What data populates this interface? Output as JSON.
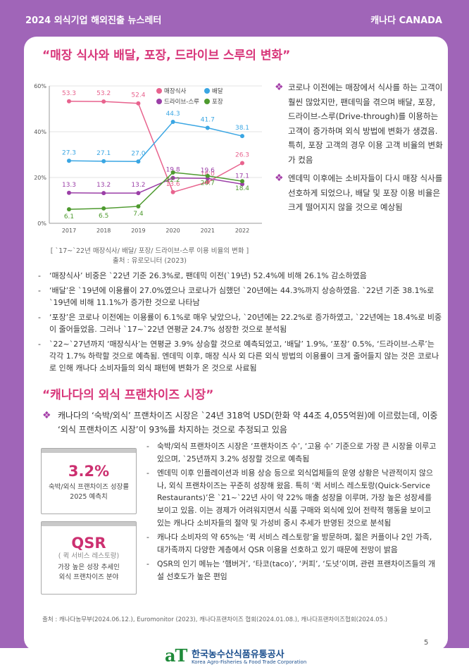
{
  "header": {
    "left": "2024 외식기업 해외진출 뉴스레터",
    "right": "캐나다 CANADA"
  },
  "section1": {
    "heading": "“매장 식사와 배달, 포장, 드라이브 스루의 변화”",
    "bullets": [
      "코로나 이전에는 매장에서 식사를 하는 고객이 훨씬 많았지만, 팬데믹을 겪으며 배달, 포장, 드라이브-스루(Drive-through)를 이용하는 고객이 증가하며 외식 방법에 변화가 생겼음. 특히, 포장 고객의 경우 이용 고객 비율의 변화가 컸음",
      "엔데믹 이후에는 소비자들이 다시 매장 식사를 선호하게 되었으나, 배달 및 포장 이용 비율은 크게 떨어지지 않을 것으로 예상됨"
    ],
    "caption": "[ `17~`22년 매장식사/ 배달/ 포장/ 드라이브-스루 이용 비율의 변화 ]",
    "source": "출처 : 유로모니터 (2023)",
    "dashes": [
      "‘매장식사’ 비중은 `22년 기준 26.3%로, 팬데믹 이전(`19년) 52.4%에 비해 26.1% 감소하였음",
      "‘배달’은 `19년에 이용률이 27.0%였으나 코로나가 심했던 `20년에는 44.3%까지 상승하였음. `22년 기준 38.1%로 `19년에 비해 11.1%가 증가한 것으로 나타남",
      "‘포장’은 코로나 이전에는 이용률이 6.1%로 매우 낮았으나, `20년에는 22.2%로 증가하였고, `22년에는 18.4%로 비중이 줄어들었음. 그러나 `17~`22년 연평균 24.7% 성장한 것으로 분석됨",
      "`22~`27년까지 ‘매장식사’는 연평균 3.9% 상승할 것으로 예측되었고, ‘배달’ 1.9%, ‘포장’ 0.5%, ‘드라이브-스루’는 각각 1.7% 하락할 것으로 예측됨. 엔데믹 이후, 매장 식사 외 다른 외식 방법의 이용률이 크게 줄어들지 않는 것은 코로나로 인해 캐나다 소비자들의 외식 패턴에 변화가 온 것으로 사료됨"
    ]
  },
  "section2": {
    "heading": "“캐나다의 외식 프랜차이즈 시장”",
    "bullet": "캐나다의 ‘숙박/외식’ 프랜차이즈 시장은 `24년 318억 USD(한화 약 44조 4,055억원)에 이르렀는데, 이중 ‘외식 프랜차이즈 시장’이 93%를 차지하는 것으로 추정되고 있음",
    "box1": {
      "big": "3.2%",
      "line1": "숙박/외식 프랜차이즈 성장률",
      "line2": "2025 예측치"
    },
    "box2": {
      "big": "QSR",
      "line0": "( 퀵 서비스 레스토랑)",
      "line1": "가장 높은 성장 추세인",
      "line2": "외식 프랜차이즈 분야"
    },
    "dashes": [
      "숙박/외식 프랜차이즈 시장은 ‘프랜차이즈 수’, ‘고용 수’ 기준으로 가장 큰 시장을 이루고 있으며, `25년까지 3.2% 성장할 것으로 예측됨",
      "엔데믹 이후 인플레이션과 비용 상승 등으로 외식업체들의 운영 상황은 낙관적이지 않으나, 외식 프랜차이즈는 꾸준히 성장해 왔음. 특히 ‘퀵 서비스 레스토랑(Quick-Service Restaurants)’은 `21~`22년 사이 약 22% 매출 성장을 이루며, 가장 높은 성장세를 보이고 있음. 이는 경제가 어려워지면서 식품 구매와 외식에 있어 전략적 행동을 보이고 있는 캐나다 소비자들의 절약 및 가성비 중시 추세가 반영된 것으로 분석됨",
      "캐나다 소비자의 약 65%는 ‘퀵 서비스 레스토랑’을 방문하며, 젊은 커플이나 2인 가족, 대가족까지 다양한 계층에서 QSR 이용을 선호하고 있기 때문에 전망이 밝음",
      "QSR의 인기 메뉴는 ‘햄버거’, ‘타코(taco)’, ‘커피’, ‘도넛’이며, 관련 프랜차이즈들의 개설 선호도가 높은 편임"
    ],
    "source": "출처 : 캐나다농무부(2024.06.12.), Euromonitor (2023), 캐나다프랜차이즈 협회(2024.01.08.), 캐나다프랜차이즈협회(2024.05.)"
  },
  "page_number": "5",
  "footer": {
    "logo_mark": "aT",
    "org_ko": "한국농수산식품유통공사",
    "org_en": "Korea Agro-Fisheries & Food Trade Corporation"
  },
  "colors": {
    "purple": "#a065b8",
    "heading": "#d8367a",
    "dine": "#e8638e",
    "delivery": "#3aa6e3",
    "drive": "#9b3fa7",
    "takeout": "#4e9a2f"
  },
  "chart_data": {
    "type": "line",
    "x": [
      "2017",
      "2018",
      "2019",
      "2020",
      "2021",
      "2022"
    ],
    "ylim": [
      0,
      60
    ],
    "yticks": [
      "0%",
      "20%",
      "40%",
      "60%"
    ],
    "grid": true,
    "legend_position": "top-right",
    "series": [
      {
        "name": "매장식사",
        "color": "#e8638e",
        "values": [
          53.3,
          53.2,
          52.4,
          13.6,
          18.0,
          26.3
        ]
      },
      {
        "name": "배달",
        "color": "#3aa6e3",
        "values": [
          27.3,
          27.1,
          27.0,
          44.3,
          41.7,
          38.1
        ]
      },
      {
        "name": "드라이브-스루",
        "color": "#9b3fa7",
        "values": [
          13.3,
          13.2,
          13.2,
          19.8,
          19.6,
          17.1
        ]
      },
      {
        "name": "포장",
        "color": "#4e9a2f",
        "values": [
          6.1,
          6.5,
          7.4,
          22.2,
          20.7,
          18.4
        ]
      }
    ]
  }
}
